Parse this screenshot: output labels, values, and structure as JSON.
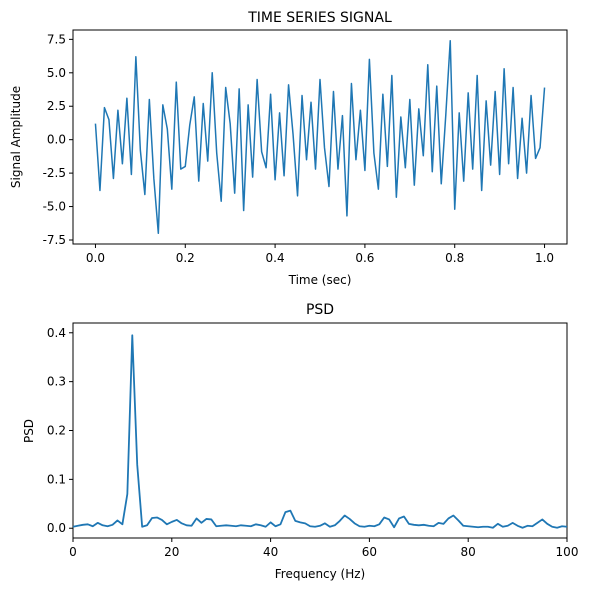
{
  "chart_data": [
    {
      "type": "line",
      "title": "TIME SERIES SIGNAL",
      "xlabel": "Time (sec)",
      "ylabel": "Signal Amplitude",
      "xlim": [
        -0.05,
        1.05
      ],
      "ylim": [
        -7.8,
        8.2
      ],
      "xticks": [
        "0.0",
        "0.2",
        "0.4",
        "0.6",
        "0.8",
        "1.0"
      ],
      "yticks": [
        "-7.5",
        "-5.0",
        "-2.5",
        "0.0",
        "2.5",
        "5.0",
        "7.5"
      ],
      "color": "#1f77b4",
      "grid": false,
      "series": [
        {
          "x": [
            0.0,
            0.01,
            0.02,
            0.03,
            0.04,
            0.05,
            0.06,
            0.07,
            0.08,
            0.09,
            0.1,
            0.11,
            0.12,
            0.13,
            0.14,
            0.15,
            0.16,
            0.17,
            0.18,
            0.19,
            0.2,
            0.21,
            0.22,
            0.23,
            0.24,
            0.25,
            0.26,
            0.27,
            0.28,
            0.29,
            0.3,
            0.31,
            0.32,
            0.33,
            0.34,
            0.35,
            0.36,
            0.37,
            0.38,
            0.39,
            0.4,
            0.41,
            0.42,
            0.43,
            0.44,
            0.45,
            0.46,
            0.47,
            0.48,
            0.49,
            0.5,
            0.51,
            0.52,
            0.53,
            0.54,
            0.55,
            0.56,
            0.57,
            0.58,
            0.59,
            0.6,
            0.61,
            0.62,
            0.63,
            0.64,
            0.65,
            0.66,
            0.67,
            0.68,
            0.69,
            0.7,
            0.71,
            0.72,
            0.73,
            0.74,
            0.75,
            0.76,
            0.77,
            0.78,
            0.79,
            0.8,
            0.81,
            0.82,
            0.83,
            0.84,
            0.85,
            0.86,
            0.87,
            0.88,
            0.89,
            0.9,
            0.91,
            0.92,
            0.93,
            0.94,
            0.95,
            0.96,
            0.97,
            0.98,
            0.99,
            1.0
          ],
          "y": [
            1.2,
            -3.8,
            2.4,
            1.5,
            -2.9,
            2.2,
            -1.8,
            3.1,
            -2.6,
            6.2,
            -0.8,
            -4.1,
            3.0,
            -2.9,
            -7.0,
            2.6,
            0.8,
            -3.7,
            4.3,
            -2.2,
            -2.0,
            1.1,
            3.2,
            -3.1,
            2.7,
            -1.6,
            5.0,
            -1.0,
            -4.6,
            3.9,
            1.2,
            -4.0,
            3.8,
            -5.3,
            2.6,
            -2.8,
            4.5,
            -0.9,
            -2.1,
            3.4,
            -3.0,
            2.0,
            -2.7,
            4.1,
            0.4,
            -4.2,
            3.3,
            -1.5,
            2.8,
            -2.2,
            4.5,
            -0.6,
            -3.5,
            3.6,
            -2.2,
            1.8,
            -5.7,
            4.2,
            -1.5,
            2.2,
            -2.3,
            6.0,
            -1.0,
            -3.7,
            3.4,
            -2.0,
            4.8,
            -4.3,
            1.7,
            -2.1,
            3.0,
            -3.4,
            2.3,
            -1.2,
            5.6,
            -2.4,
            4.0,
            -3.3,
            1.8,
            7.4,
            -5.2,
            2.0,
            -3.1,
            3.5,
            -2.2,
            4.8,
            -3.8,
            2.9,
            -1.9,
            3.6,
            -2.6,
            5.3,
            -1.8,
            3.9,
            -2.9,
            1.6,
            -2.5,
            3.3,
            -1.4,
            -0.6,
            3.9
          ]
        }
      ]
    },
    {
      "type": "line",
      "title": "PSD",
      "xlabel": "Frequency (Hz)",
      "ylabel": "PSD",
      "xlim": [
        0,
        100
      ],
      "ylim": [
        -0.02,
        0.42
      ],
      "xticks": [
        "0",
        "20",
        "40",
        "60",
        "80",
        "100"
      ],
      "yticks": [
        "0.0",
        "0.1",
        "0.2",
        "0.3",
        "0.4"
      ],
      "color": "#1f77b4",
      "grid": false,
      "series": [
        {
          "x": [
            0,
            1,
            2,
            3,
            4,
            5,
            6,
            7,
            8,
            9,
            10,
            11,
            12,
            13,
            14,
            15,
            16,
            17,
            18,
            19,
            20,
            21,
            22,
            23,
            24,
            25,
            26,
            27,
            28,
            29,
            30,
            31,
            32,
            33,
            34,
            35,
            36,
            37,
            38,
            39,
            40,
            41,
            42,
            43,
            44,
            45,
            46,
            47,
            48,
            49,
            50,
            51,
            52,
            53,
            54,
            55,
            56,
            57,
            58,
            59,
            60,
            61,
            62,
            63,
            64,
            65,
            66,
            67,
            68,
            69,
            70,
            71,
            72,
            73,
            74,
            75,
            76,
            77,
            78,
            79,
            80,
            81,
            82,
            83,
            84,
            85,
            86,
            87,
            88,
            89,
            90,
            91,
            92,
            93,
            94,
            95,
            96,
            97,
            98,
            99,
            100
          ],
          "y": [
            0.003,
            0.005,
            0.007,
            0.008,
            0.004,
            0.011,
            0.006,
            0.004,
            0.007,
            0.016,
            0.008,
            0.07,
            0.395,
            0.13,
            0.003,
            0.006,
            0.021,
            0.022,
            0.017,
            0.008,
            0.013,
            0.017,
            0.01,
            0.006,
            0.005,
            0.02,
            0.011,
            0.019,
            0.018,
            0.004,
            0.005,
            0.006,
            0.005,
            0.004,
            0.006,
            0.005,
            0.004,
            0.008,
            0.006,
            0.003,
            0.012,
            0.004,
            0.008,
            0.033,
            0.036,
            0.015,
            0.012,
            0.01,
            0.004,
            0.003,
            0.005,
            0.01,
            0.003,
            0.006,
            0.015,
            0.026,
            0.019,
            0.01,
            0.004,
            0.003,
            0.005,
            0.004,
            0.008,
            0.022,
            0.018,
            0.002,
            0.02,
            0.024,
            0.009,
            0.007,
            0.006,
            0.007,
            0.005,
            0.004,
            0.011,
            0.009,
            0.02,
            0.026,
            0.016,
            0.005,
            0.004,
            0.003,
            0.002,
            0.003,
            0.003,
            0.001,
            0.009,
            0.003,
            0.005,
            0.011,
            0.005,
            0.001,
            0.005,
            0.004,
            0.011,
            0.018,
            0.009,
            0.003,
            0.001,
            0.004,
            0.003
          ]
        }
      ]
    }
  ]
}
